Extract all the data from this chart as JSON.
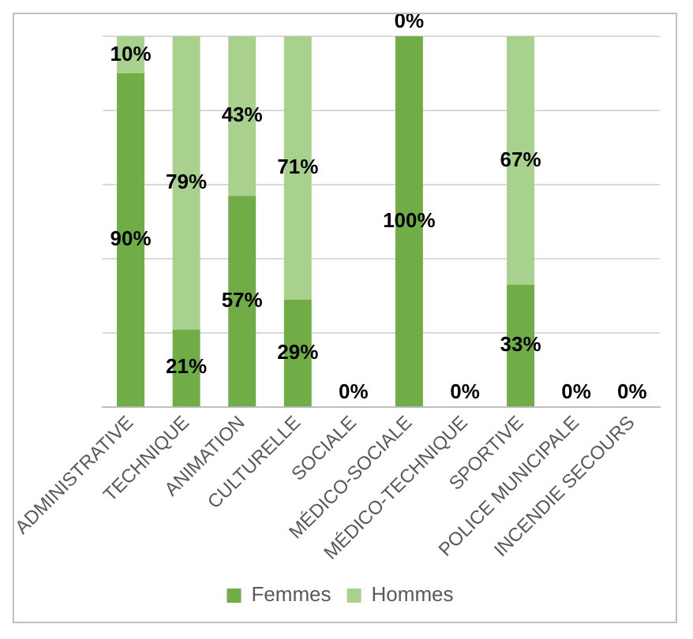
{
  "chart_data": {
    "type": "bar",
    "stacked": true,
    "categories": [
      "ADMINISTRATIVE",
      "TECHNIQUE",
      "ANIMATION",
      "CULTURELLE",
      "SOCIALE",
      "MÉDICO-SOCIALE",
      "MÉDICO-TECHNIQUE",
      "SPORTIVE",
      "POLICE MUNICIPALE",
      "INCENDIE SECOURS"
    ],
    "series": [
      {
        "name": "Femmes",
        "color": "#70ad47",
        "values": [
          90,
          21,
          57,
          29,
          0,
          100,
          0,
          33,
          0,
          0
        ],
        "value_labels": [
          "90%",
          "21%",
          "57%",
          "29%",
          "0%",
          "100%",
          "0%",
          "33%",
          "0%",
          "0%"
        ]
      },
      {
        "name": "Hommes",
        "color": "#a9d18e",
        "values": [
          10,
          79,
          43,
          71,
          0,
          0,
          0,
          67,
          0,
          0
        ],
        "value_labels": [
          "10%",
          "79%",
          "43%",
          "71%",
          null,
          "0%",
          null,
          "67%",
          null,
          null
        ]
      }
    ],
    "ylim": [
      0,
      100
    ],
    "yticks": [
      {
        "value": 0,
        "label": null
      },
      {
        "value": 20,
        "label": null
      },
      {
        "value": 40,
        "label": null
      },
      {
        "value": 60,
        "label": null
      },
      {
        "value": 80,
        "label": null
      },
      {
        "value": 100,
        "label": null
      }
    ],
    "tick_labels": "x",
    "grid": "y",
    "legend": "bottom"
  }
}
